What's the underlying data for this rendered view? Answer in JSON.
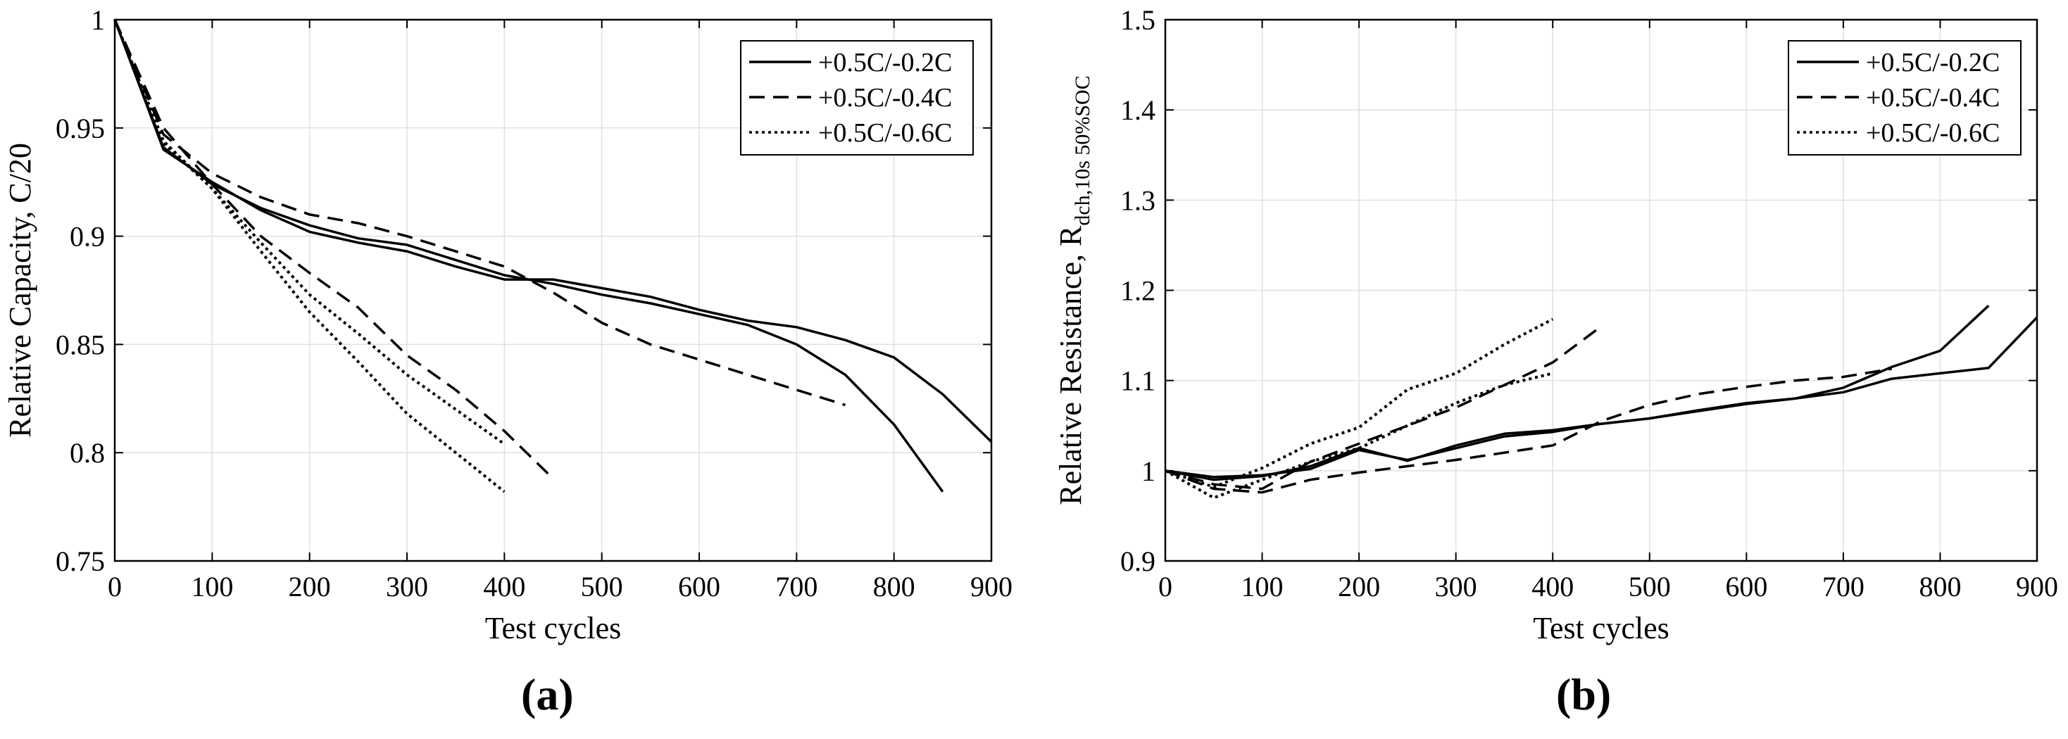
{
  "chart_data": [
    {
      "type": "line",
      "panel": "(a)",
      "xlabel": "Test cycles",
      "ylabel": "Relative Capacity, C/20",
      "xlim": [
        0,
        900
      ],
      "ylim": [
        0.75,
        1.0
      ],
      "xticks": [
        0,
        100,
        200,
        300,
        400,
        500,
        600,
        700,
        800,
        900
      ],
      "xtick_labels": [
        "0",
        "100",
        "200",
        "300",
        "400",
        "500",
        "600",
        "700",
        "800",
        "900"
      ],
      "yticks": [
        0.75,
        0.8,
        0.85,
        0.9,
        0.95,
        1.0
      ],
      "ytick_labels": [
        "0.75",
        "0.8",
        "0.85",
        "0.9",
        "0.95",
        "1"
      ],
      "grid": true,
      "legend_position": "top-right",
      "series": [
        {
          "name": "+0.5C/-0.2C",
          "style": "solid",
          "x": [
            0,
            50,
            100,
            150,
            200,
            250,
            300,
            350,
            400,
            450,
            500,
            550,
            600,
            650,
            700,
            750,
            800,
            850,
            900
          ],
          "y": [
            1.0,
            0.941,
            0.924,
            0.913,
            0.905,
            0.899,
            0.896,
            0.889,
            0.882,
            0.878,
            0.873,
            0.869,
            0.864,
            0.859,
            0.85,
            0.836,
            0.813,
            0.782,
            null
          ]
        },
        {
          "name": "+0.5C/-0.2C",
          "style": "solid",
          "x": [
            0,
            50,
            100,
            150,
            200,
            250,
            300,
            350,
            400,
            450,
            500,
            550,
            600,
            650,
            700,
            750,
            800,
            850,
            900
          ],
          "y": [
            1.0,
            0.94,
            0.925,
            0.912,
            0.902,
            0.897,
            0.893,
            0.886,
            0.88,
            0.88,
            0.876,
            0.872,
            0.866,
            0.861,
            0.858,
            0.852,
            0.844,
            0.827,
            0.805
          ]
        },
        {
          "name": "+0.5C/-0.4C",
          "style": "dashed",
          "x": [
            0,
            50,
            100,
            150,
            200,
            250,
            300,
            350,
            400,
            450,
            500,
            550,
            600,
            650,
            700,
            750
          ],
          "y": [
            1.0,
            0.947,
            0.929,
            0.918,
            0.91,
            0.906,
            0.9,
            0.893,
            0.886,
            0.874,
            0.86,
            0.85,
            0.843,
            0.836,
            0.829,
            0.822
          ]
        },
        {
          "name": "+0.5C/-0.4C",
          "style": "dashed",
          "x": [
            0,
            50,
            100,
            150,
            200,
            250,
            300,
            350,
            400,
            450
          ],
          "y": [
            1.0,
            0.95,
            0.924,
            0.9,
            0.883,
            0.867,
            0.845,
            0.829,
            0.81,
            0.788
          ]
        },
        {
          "name": "+0.5C/-0.6C",
          "style": "dotted",
          "x": [
            0,
            50,
            100,
            150,
            200,
            250,
            300,
            350,
            400
          ],
          "y": [
            1.0,
            0.944,
            0.922,
            0.897,
            0.873,
            0.855,
            0.836,
            0.82,
            0.804
          ]
        },
        {
          "name": "+0.5C/-0.6C",
          "style": "dotted",
          "x": [
            0,
            50,
            100,
            150,
            200,
            250,
            300,
            350,
            400
          ],
          "y": [
            1.0,
            0.943,
            0.922,
            0.893,
            0.865,
            0.842,
            0.818,
            0.8,
            0.782
          ]
        }
      ]
    },
    {
      "type": "line",
      "panel": "(b)",
      "xlabel": "Test cycles",
      "ylabel": "Relative Resistance, R",
      "ylabel_subscript": "dch,10s 50%SOC",
      "xlim": [
        0,
        900
      ],
      "ylim": [
        0.9,
        1.5
      ],
      "xticks": [
        0,
        100,
        200,
        300,
        400,
        500,
        600,
        700,
        800,
        900
      ],
      "xtick_labels": [
        "0",
        "100",
        "200",
        "300",
        "400",
        "500",
        "600",
        "700",
        "800",
        "900"
      ],
      "yticks": [
        0.9,
        1.0,
        1.1,
        1.2,
        1.3,
        1.4,
        1.5
      ],
      "ytick_labels": [
        "0.9",
        "1",
        "1.1",
        "1.2",
        "1.3",
        "1.4",
        "1.5"
      ],
      "grid": true,
      "legend_position": "top-right",
      "series": [
        {
          "name": "+0.5C/-0.2C",
          "style": "solid",
          "x": [
            0,
            50,
            100,
            150,
            200,
            250,
            300,
            350,
            400,
            450,
            500,
            550,
            600,
            650,
            700,
            750,
            800,
            850
          ],
          "y": [
            1.0,
            0.993,
            0.995,
            1.002,
            1.023,
            1.012,
            1.025,
            1.038,
            1.043,
            1.052,
            1.058,
            1.067,
            1.075,
            1.08,
            1.092,
            1.115,
            1.133,
            1.183
          ]
        },
        {
          "name": "+0.5C/-0.2C",
          "style": "solid",
          "x": [
            0,
            50,
            100,
            150,
            200,
            250,
            300,
            350,
            400,
            450,
            500,
            550,
            600,
            650,
            700,
            750,
            800,
            850,
            900
          ],
          "y": [
            1.0,
            0.99,
            0.994,
            1.005,
            1.025,
            1.011,
            1.028,
            1.041,
            1.045,
            1.052,
            1.058,
            1.066,
            1.074,
            1.08,
            1.087,
            1.102,
            1.108,
            1.114,
            1.17
          ]
        },
        {
          "name": "+0.5C/-0.4C",
          "style": "dashed",
          "x": [
            0,
            50,
            100,
            150,
            200,
            250,
            300,
            350,
            400,
            450
          ],
          "y": [
            1.0,
            0.985,
            0.98,
            1.01,
            1.03,
            1.05,
            1.07,
            1.095,
            1.12,
            1.16
          ]
        },
        {
          "name": "+0.5C/-0.4C",
          "style": "dashed",
          "x": [
            0,
            50,
            100,
            150,
            200,
            250,
            300,
            350,
            400,
            450,
            500,
            550,
            600,
            650,
            700,
            750
          ],
          "y": [
            1.0,
            0.98,
            0.976,
            0.99,
            0.998,
            1.005,
            1.012,
            1.02,
            1.028,
            1.055,
            1.073,
            1.085,
            1.093,
            1.1,
            1.104,
            1.113
          ]
        },
        {
          "name": "+0.5C/-0.6C",
          "style": "dotted",
          "x": [
            0,
            50,
            100,
            150,
            200,
            250,
            300,
            350,
            400
          ],
          "y": [
            1.0,
            0.982,
            1.003,
            1.03,
            1.048,
            1.09,
            1.108,
            1.14,
            1.168
          ]
        },
        {
          "name": "+0.5C/-0.6C",
          "style": "dotted",
          "x": [
            0,
            50,
            100,
            150,
            200,
            250,
            300,
            350,
            400
          ],
          "y": [
            1.0,
            0.97,
            0.99,
            1.01,
            1.025,
            1.05,
            1.075,
            1.095,
            1.108
          ]
        }
      ]
    }
  ],
  "legend": {
    "entries": [
      {
        "label": "+0.5C/-0.2C",
        "style": "solid"
      },
      {
        "label": "+0.5C/-0.4C",
        "style": "dashed"
      },
      {
        "label": "+0.5C/-0.6C",
        "style": "dotted"
      }
    ]
  },
  "colors": {
    "line": "#000000",
    "grid": "#e0e0e0",
    "axis": "#000000",
    "background": "#ffffff"
  },
  "panels": {
    "a_label": "(a)",
    "b_label": "(b)"
  }
}
